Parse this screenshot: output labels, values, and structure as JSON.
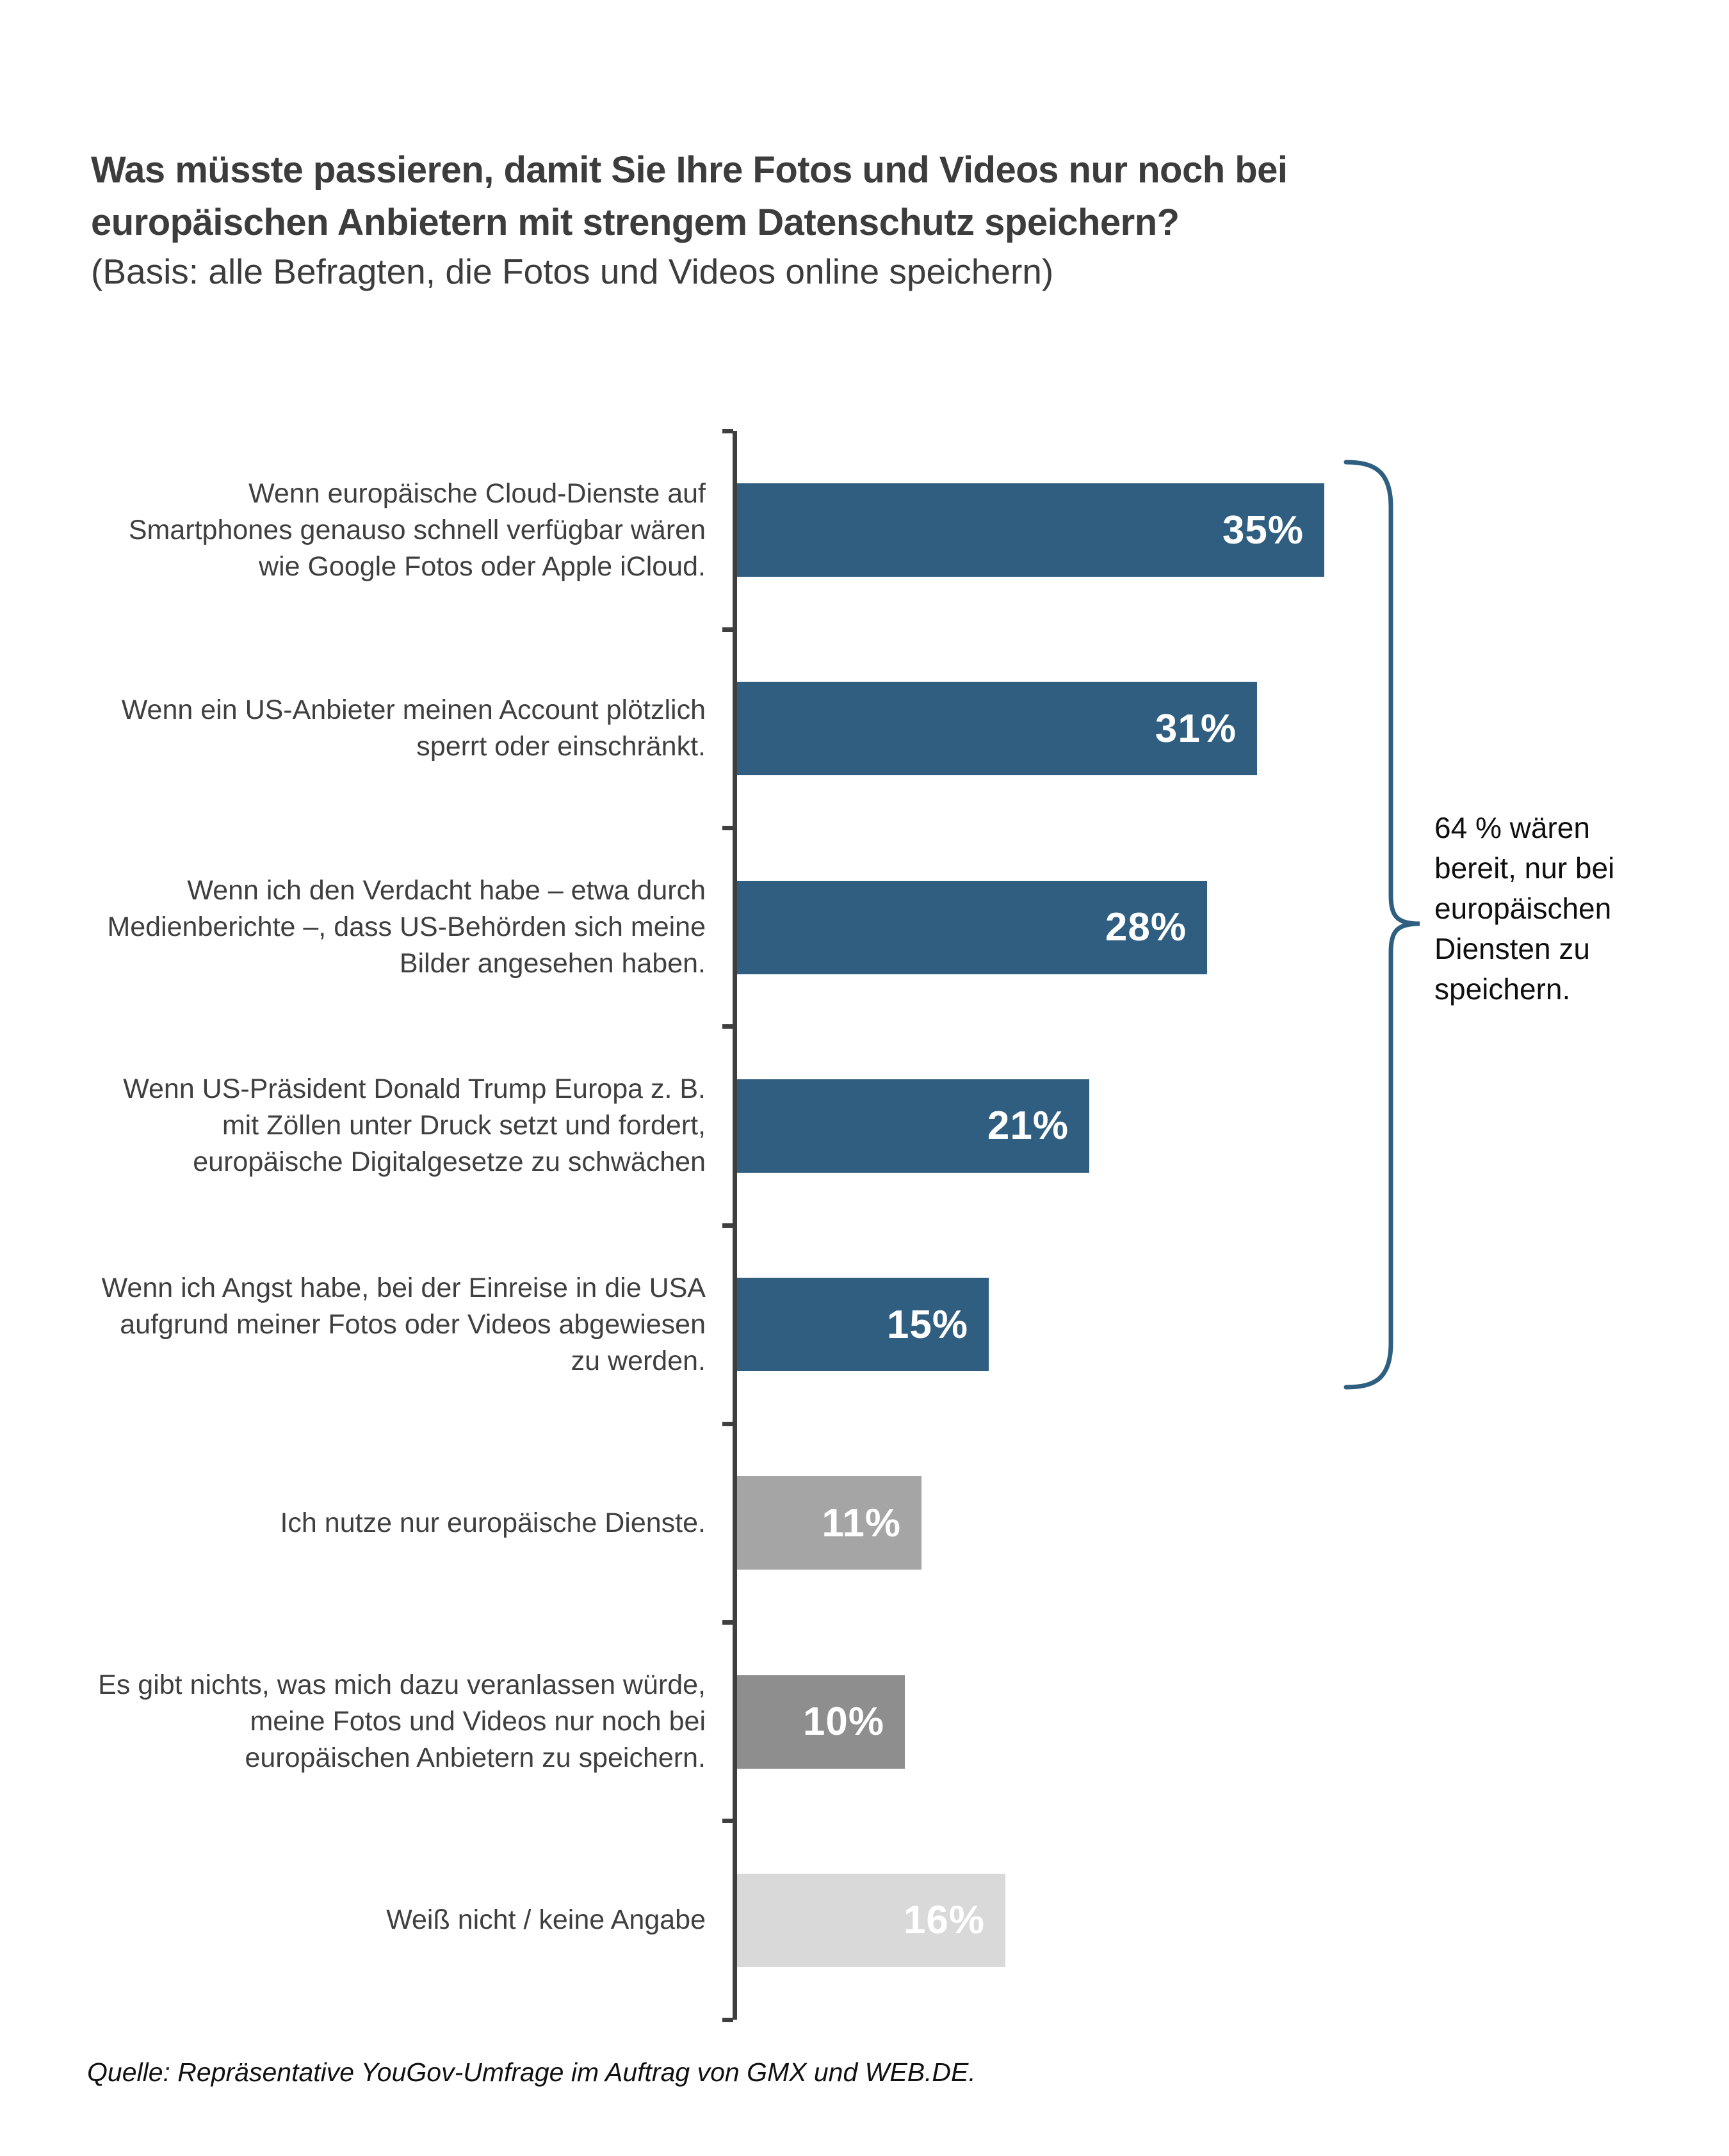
{
  "title": {
    "line1": "Was müsste passieren, damit Sie Ihre Fotos und Videos nur noch bei",
    "line2": "europäischen Anbietern mit strengem Datenschutz speichern?",
    "subtitle": "(Basis: alle Befragten, die Fotos und Videos online speichern)"
  },
  "source": "Quelle: Repräsentative YouGov-Umfrage im Auftrag von GMX und WEB.DE.",
  "annotation": {
    "lines": [
      "64 % wären",
      "bereit, nur bei",
      "europäischen",
      "Diensten zu",
      "speichern."
    ],
    "full_text": "64 % wären bereit, nur bei europäischen Diensten zu speichern."
  },
  "colors": {
    "bar_blue": "#305E80",
    "bar_gray_medium": "#A5A5A5",
    "bar_gray_dark": "#8E8E8E",
    "bar_gray_light": "#D9D9D9",
    "axis": "#3F3F3F",
    "brace": "#2E5F81",
    "title_text": "#3C3C3C",
    "label_text": "#3F3F3F",
    "value_text": "#FFFFFF"
  },
  "chart_data": {
    "type": "bar",
    "orientation": "horizontal",
    "unit": "%",
    "xlim": [
      0,
      38
    ],
    "grid": false,
    "legend": "none",
    "categories": [
      "Wenn europäische Cloud-Dienste auf Smartphones genauso schnell verfügbar wären wie Google Fotos oder Apple iCloud.",
      "Wenn ein US-Anbieter meinen Account plötzlich sperrt oder einschränkt.",
      "Wenn ich den Verdacht habe – etwa durch Medienberichte –, dass US-Behörden sich meine Bilder angesehen haben.",
      "Wenn US-Präsident Donald Trump Europa z. B. mit Zöllen unter Druck setzt und fordert, europäische Digitalgesetze zu schwächen",
      "Wenn ich Angst habe, bei der Einreise in die USA aufgrund meiner Fotos oder Videos abgewiesen zu werden.",
      "Ich nutze nur europäische Dienste.",
      "Es gibt nichts, was mich dazu veranlassen würde, meine Fotos und Videos nur noch bei europäischen Anbietern zu speichern.",
      "Weiß nicht / keine Angabe"
    ],
    "values": [
      35,
      31,
      28,
      21,
      15,
      11,
      10,
      16
    ],
    "value_labels": [
      "35%",
      "31%",
      "28%",
      "21%",
      "15%",
      "11%",
      "10%",
      "16%"
    ],
    "bar_colors": [
      "#305E80",
      "#305E80",
      "#305E80",
      "#305E80",
      "#305E80",
      "#A5A5A5",
      "#8E8E8E",
      "#D9D9D9"
    ],
    "annotation": "64 % wären bereit, nur bei europäischen Diensten zu speichern. (Klammer über den ersten fünf Balken)"
  }
}
